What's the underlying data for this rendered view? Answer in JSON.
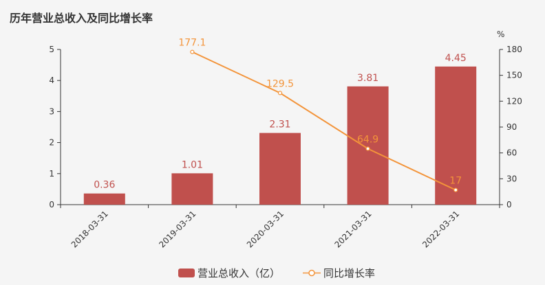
{
  "chart_data": {
    "type": "bar",
    "title": "历年营业总收入及同比增长率",
    "categories": [
      "2018-03-31",
      "2019-03-31",
      "2020-03-31",
      "2021-03-31",
      "2022-03-31"
    ],
    "series": [
      {
        "name": "营业总收入（亿）",
        "type": "bar",
        "axis": "left",
        "color": "#c0504d",
        "values": [
          0.36,
          1.01,
          2.31,
          3.81,
          4.45
        ],
        "labels": [
          "0.36",
          "1.01",
          "2.31",
          "3.81",
          "4.45"
        ]
      },
      {
        "name": "同比增长率",
        "type": "line",
        "axis": "right",
        "color": "#f3943a",
        "values": [
          null,
          177.1,
          129.5,
          64.9,
          17
        ],
        "labels": [
          "",
          "177.1",
          "129.5",
          "64.9",
          "17"
        ]
      }
    ],
    "y_left": {
      "min": 0,
      "max": 5,
      "ticks": [
        "0",
        "1",
        "2",
        "3",
        "4",
        "5"
      ]
    },
    "y_right": {
      "min": 0,
      "max": 180,
      "ticks": [
        "0",
        "30",
        "60",
        "90",
        "120",
        "150",
        "180"
      ],
      "unit": "%"
    },
    "grid": false,
    "legend": "bottom-center"
  }
}
